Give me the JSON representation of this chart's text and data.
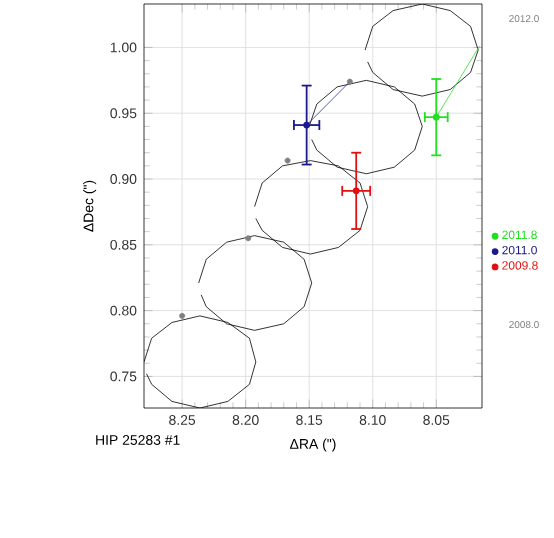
{
  "chart_data": {
    "type": "scatter",
    "title": "HIP 25283 #1",
    "xlabel": "ΔRA (\")",
    "ylabel": "ΔDec (\")",
    "xlim": [
      8.28,
      8.014
    ],
    "ylim": [
      0.726,
      1.033
    ],
    "xticks": [
      {
        "value": 8.25,
        "label": "8.25"
      },
      {
        "value": 8.2,
        "label": "8.20"
      },
      {
        "value": 8.15,
        "label": "8.15"
      },
      {
        "value": 8.1,
        "label": "8.10"
      },
      {
        "value": 8.05,
        "label": "8.05"
      }
    ],
    "yticks": [
      {
        "value": 0.75,
        "label": "0.75"
      },
      {
        "value": 0.8,
        "label": "0.80"
      },
      {
        "value": 0.85,
        "label": "0.85"
      },
      {
        "value": 0.9,
        "label": "0.90"
      },
      {
        "value": 0.95,
        "label": "0.95"
      },
      {
        "value": 1.0,
        "label": "1.00"
      }
    ],
    "grid": true,
    "legend": "right",
    "marker": "none",
    "annotations": [
      "2012.0",
      "2008.0"
    ],
    "series": [
      {
        "type": "line",
        "color": "#000000",
        "x": [
          8.28,
          8.274,
          8.258,
          8.236,
          8.214,
          8.197,
          8.192,
          8.197,
          8.214,
          8.236,
          8.258,
          8.274,
          8.278
        ],
        "values": [
          0.761,
          0.779,
          0.791,
          0.796,
          0.791,
          0.779,
          0.761,
          0.744,
          0.731,
          0.726,
          0.731,
          0.744,
          0.752
        ]
      },
      {
        "type": "line",
        "color": "#000000",
        "x": [
          8.237,
          8.231,
          8.215,
          8.193,
          8.17,
          8.154,
          8.148,
          8.154,
          8.17,
          8.193,
          8.215,
          8.231,
          8.235
        ],
        "values": [
          0.821,
          0.839,
          0.852,
          0.857,
          0.852,
          0.839,
          0.821,
          0.803,
          0.79,
          0.785,
          0.79,
          0.803,
          0.812
        ]
      },
      {
        "type": "line",
        "color": "#000000",
        "x": [
          8.193,
          8.187,
          8.171,
          8.149,
          8.127,
          8.11,
          8.104,
          8.11,
          8.127,
          8.149,
          8.171,
          8.187,
          8.192
        ],
        "values": [
          0.879,
          0.897,
          0.91,
          0.914,
          0.91,
          0.897,
          0.879,
          0.861,
          0.848,
          0.843,
          0.848,
          0.861,
          0.87
        ]
      },
      {
        "type": "line",
        "color": "#000000",
        "x": [
          8.15,
          8.144,
          8.128,
          8.105,
          8.083,
          8.067,
          8.061,
          8.067,
          8.083,
          8.105,
          8.128,
          8.144,
          8.148
        ],
        "values": [
          0.94,
          0.957,
          0.97,
          0.975,
          0.97,
          0.957,
          0.94,
          0.922,
          0.909,
          0.904,
          0.909,
          0.922,
          0.93
        ]
      },
      {
        "type": "line",
        "color": "#000000",
        "x": [
          8.106,
          8.1,
          8.084,
          8.061,
          8.039,
          8.023,
          8.017,
          8.023,
          8.039,
          8.061,
          8.084,
          8.1,
          8.104
        ],
        "values": [
          0.998,
          1.016,
          1.028,
          1.033,
          1.028,
          1.016,
          0.998,
          0.981,
          0.968,
          0.963,
          0.968,
          0.981,
          0.989
        ]
      },
      {
        "type": "scatter",
        "marker": "circle",
        "color": "#808080",
        "x": [
          8.25,
          8.198,
          8.167,
          8.118
        ],
        "values": [
          0.796,
          0.855,
          0.914,
          0.974
        ]
      },
      {
        "type": "line",
        "color": "#3030a0",
        "x": [
          8.152,
          8.118
        ],
        "values": [
          0.941,
          0.974
        ]
      },
      {
        "type": "line",
        "color": "#30e030",
        "x": [
          8.05,
          8.016
        ],
        "values": [
          0.947,
          1.001
        ]
      },
      {
        "name": "2011.8",
        "marker": "circle",
        "color": "#20e020",
        "x": [
          8.05
        ],
        "values": [
          0.947
        ],
        "errors": [
          0.029
        ],
        "xerrors": [
          0.009
        ]
      },
      {
        "name": "2011.0",
        "marker": "circle",
        "color": "#1a1a8c",
        "x": [
          8.152
        ],
        "values": [
          0.941
        ],
        "errors": [
          0.03
        ],
        "xerrors": [
          0.01
        ]
      },
      {
        "name": "2009.8",
        "marker": "circle",
        "color": "#e01010",
        "x": [
          8.113
        ],
        "values": [
          0.891
        ],
        "errors": [
          0.029
        ],
        "xerrors": [
          0.011
        ]
      }
    ]
  }
}
